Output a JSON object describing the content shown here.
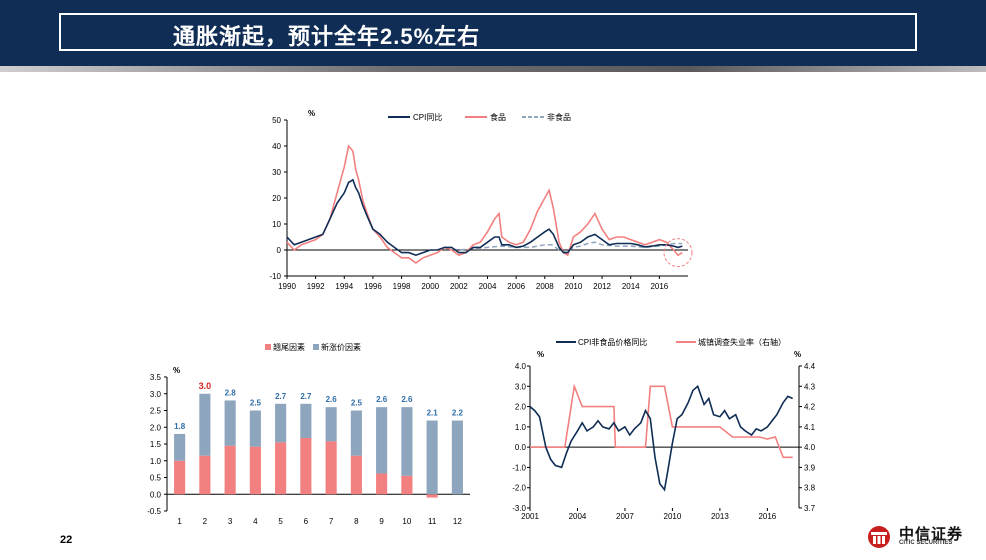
{
  "header": {
    "title": "通胀渐起，预计全年2.5%左右"
  },
  "footer": {
    "page_number": "22",
    "logo_text": "中信证券",
    "logo_sub": "CITIC SECURITIES"
  },
  "colors": {
    "navy": "#0f2d55",
    "pink": "#f28080",
    "steel": "#8ea5be",
    "red": "#d62020",
    "blue_label": "#2f6ea8"
  },
  "chart_data": [
    {
      "id": "cpi_history",
      "type": "line",
      "unit_label": "%",
      "ylim": [
        -10,
        50
      ],
      "yticks": [
        "50",
        "40",
        "30",
        "20",
        "10",
        "0",
        "-10"
      ],
      "xlim": [
        1990,
        2018
      ],
      "xticks": [
        "1990",
        "1992",
        "1994",
        "1996",
        "1998",
        "2000",
        "2002",
        "2004",
        "2006",
        "2008",
        "2010",
        "2012",
        "2014",
        "2016"
      ],
      "series": [
        {
          "name": "CPI同比",
          "style": "solid-navy",
          "x": [
            1990.0,
            1990.5,
            1991.0,
            1991.5,
            1992.0,
            1992.5,
            1993.0,
            1993.5,
            1994.0,
            1994.3,
            1994.6,
            1994.8,
            1995.0,
            1995.3,
            1995.6,
            1996.0,
            1996.5,
            1997.0,
            1997.5,
            1998.0,
            1998.5,
            1999.0,
            1999.5,
            2000.0,
            2000.5,
            2001.0,
            2001.5,
            2002.0,
            2002.5,
            2003.0,
            2003.5,
            2004.0,
            2004.5,
            2004.8,
            2005.0,
            2005.5,
            2006.0,
            2006.5,
            2007.0,
            2007.5,
            2008.0,
            2008.3,
            2008.6,
            2009.0,
            2009.3,
            2009.6,
            2010.0,
            2010.5,
            2011.0,
            2011.5,
            2012.0,
            2012.5,
            2013.0,
            2013.5,
            2014.0,
            2014.5,
            2015.0,
            2015.5,
            2016.0,
            2016.5,
            2017.0,
            2017.3,
            2017.6
          ],
          "values": [
            5,
            2,
            3,
            4,
            5,
            6,
            12,
            18,
            22,
            26,
            27,
            24,
            22,
            17,
            13,
            8,
            6,
            3,
            1,
            -1,
            -1,
            -2,
            -1,
            0,
            0,
            1,
            1,
            -1,
            -1,
            1,
            1,
            3,
            5,
            5,
            2,
            2,
            1,
            1.5,
            3,
            5,
            7,
            8,
            6,
            1,
            -1,
            -1,
            2,
            3,
            5,
            6,
            4,
            2,
            2.5,
            2.5,
            2.5,
            2,
            1.2,
            1.5,
            2,
            2,
            1.5,
            1,
            1.5
          ]
        },
        {
          "name": "食品",
          "style": "solid-pink",
          "x": [
            1990.0,
            1990.5,
            1991.0,
            1991.5,
            1992.0,
            1992.5,
            1993.0,
            1993.5,
            1994.0,
            1994.3,
            1994.6,
            1994.8,
            1995.0,
            1995.3,
            1995.6,
            1996.0,
            1996.5,
            1997.0,
            1997.5,
            1998.0,
            1998.5,
            1999.0,
            1999.5,
            2000.0,
            2000.5,
            2001.0,
            2001.5,
            2002.0,
            2002.5,
            2003.0,
            2003.5,
            2004.0,
            2004.5,
            2004.8,
            2005.0,
            2005.5,
            2006.0,
            2006.5,
            2007.0,
            2007.5,
            2008.0,
            2008.3,
            2008.6,
            2009.0,
            2009.3,
            2009.6,
            2010.0,
            2010.5,
            2011.0,
            2011.5,
            2012.0,
            2012.5,
            2013.0,
            2013.5,
            2014.0,
            2014.5,
            2015.0,
            2015.5,
            2016.0,
            2016.5,
            2017.0,
            2017.3,
            2017.6
          ],
          "values": [
            3,
            0,
            2,
            3,
            4,
            6,
            12,
            22,
            32,
            40,
            38,
            31,
            27,
            19,
            14,
            8,
            5,
            1,
            -1,
            -3,
            -3,
            -5,
            -3,
            -2,
            -1,
            1,
            0,
            -2,
            -1,
            2,
            3,
            7,
            12,
            14,
            5,
            3,
            2,
            3,
            8,
            15,
            20,
            23,
            16,
            3,
            -1,
            -2,
            5,
            7,
            10,
            14,
            8,
            4,
            5,
            5,
            4,
            3,
            2,
            3,
            4,
            3,
            0,
            -2,
            -1
          ]
        },
        {
          "name": "非食品",
          "style": "dashed-steel",
          "x": [
            2001.0,
            2002.0,
            2003.0,
            2004.0,
            2005.0,
            2006.0,
            2007.0,
            2008.0,
            2008.5,
            2009.0,
            2009.5,
            2010.0,
            2010.5,
            2011.0,
            2011.5,
            2012.0,
            2013.0,
            2014.0,
            2015.0,
            2016.0,
            2016.5,
            2017.0,
            2017.6
          ],
          "values": [
            1,
            0,
            0.5,
            1,
            1.5,
            1,
            1,
            2,
            2,
            0,
            -1,
            1,
            1.5,
            2.5,
            3,
            2,
            1.5,
            1.5,
            1,
            1.5,
            2,
            2.5,
            2.5
          ]
        }
      ]
    },
    {
      "id": "cpi_2017_decomposition",
      "type": "bar",
      "unit_label": "%",
      "ylim": [
        -0.5,
        3.5
      ],
      "yticks": [
        "3.5",
        "3.0",
        "2.5",
        "2.0",
        "1.5",
        "1.0",
        "0.5",
        "0.0",
        "-0.5"
      ],
      "categories": [
        "1",
        "2",
        "3",
        "4",
        "5",
        "6",
        "7",
        "8",
        "9",
        "10",
        "11",
        "12"
      ],
      "series": [
        {
          "name": "翘尾因素",
          "values": [
            1.0,
            1.15,
            1.45,
            1.42,
            1.55,
            1.68,
            1.58,
            1.15,
            0.62,
            0.55,
            -0.1,
            0.0
          ]
        },
        {
          "name": "新涨价因素",
          "values": [
            0.8,
            1.85,
            1.35,
            1.08,
            1.15,
            1.02,
            1.02,
            1.35,
            1.98,
            2.05,
            2.2,
            2.2
          ]
        }
      ],
      "totals": [
        "1.8",
        "3.0",
        "2.8",
        "2.5",
        "2.7",
        "2.7",
        "2.6",
        "2.5",
        "2.6",
        "2.6",
        "2.1",
        "2.2"
      ],
      "highlight_index": 1
    },
    {
      "id": "nonfood_cpi_vs_unemployment",
      "type": "line",
      "left_unit": "%",
      "right_unit": "%",
      "left_ylim": [
        -3,
        4
      ],
      "right_ylim": [
        3.7,
        4.4
      ],
      "left_yticks": [
        "4.0",
        "3.0",
        "2.0",
        "1.0",
        "0.0",
        "-1.0",
        "-2.0",
        "-3.0"
      ],
      "right_yticks": [
        "4.4",
        "4.3",
        "4.2",
        "4.1",
        "4.0",
        "3.9",
        "3.8",
        "3.7"
      ],
      "xlim": [
        2001,
        2018
      ],
      "xticks": [
        "2001",
        "2004",
        "2007",
        "2010",
        "2013",
        "2016"
      ],
      "series": [
        {
          "name": "CPI非食品价格同比",
          "axis": "left",
          "x": [
            2001.0,
            2001.3,
            2001.6,
            2002.0,
            2002.3,
            2002.6,
            2003.0,
            2003.3,
            2003.6,
            2004.0,
            2004.3,
            2004.6,
            2005.0,
            2005.3,
            2005.6,
            2006.0,
            2006.3,
            2006.6,
            2007.0,
            2007.3,
            2007.6,
            2008.0,
            2008.3,
            2008.6,
            2008.9,
            2009.2,
            2009.5,
            2009.7,
            2010.0,
            2010.3,
            2010.6,
            2011.0,
            2011.3,
            2011.6,
            2012.0,
            2012.3,
            2012.6,
            2013.0,
            2013.3,
            2013.6,
            2014.0,
            2014.3,
            2014.6,
            2015.0,
            2015.3,
            2015.6,
            2016.0,
            2016.3,
            2016.6,
            2017.0,
            2017.3,
            2017.6
          ],
          "values": [
            2.0,
            1.8,
            1.5,
            0.0,
            -0.6,
            -0.9,
            -1.0,
            -0.3,
            0.3,
            0.8,
            1.2,
            0.8,
            1.0,
            1.3,
            1.0,
            0.9,
            1.2,
            0.8,
            1.0,
            0.6,
            0.9,
            1.2,
            1.8,
            1.4,
            -0.5,
            -1.8,
            -2.1,
            -1.2,
            0.2,
            1.4,
            1.6,
            2.2,
            2.8,
            3.0,
            2.1,
            2.4,
            1.6,
            1.5,
            1.8,
            1.4,
            1.6,
            1.0,
            0.8,
            0.6,
            0.9,
            0.8,
            1.0,
            1.3,
            1.6,
            2.2,
            2.5,
            2.4
          ]
        },
        {
          "name": "城镇调查失业率（右轴）",
          "axis": "right",
          "x": [
            2001.0,
            2002.0,
            2002.5,
            2003.2,
            2003.6,
            2003.8,
            2004.3,
            2005.3,
            2005.8,
            2006.3,
            2006.4,
            2007.0,
            2007.5,
            2008.3,
            2008.6,
            2008.8,
            2009.0,
            2009.5,
            2010.0,
            2010.2,
            2011.0,
            2012.0,
            2013.0,
            2013.8,
            2014.0,
            2015.0,
            2015.5,
            2016.0,
            2016.5,
            2017.0,
            2017.3,
            2017.6
          ],
          "values": [
            4.0,
            4.0,
            4.0,
            4.0,
            4.2,
            4.3,
            4.2,
            4.2,
            4.2,
            4.2,
            4.0,
            4.0,
            4.0,
            4.0,
            4.3,
            4.3,
            4.3,
            4.3,
            4.1,
            4.1,
            4.1,
            4.1,
            4.1,
            4.05,
            4.05,
            4.05,
            4.05,
            4.04,
            4.05,
            3.95,
            3.95,
            3.95
          ]
        }
      ]
    }
  ]
}
